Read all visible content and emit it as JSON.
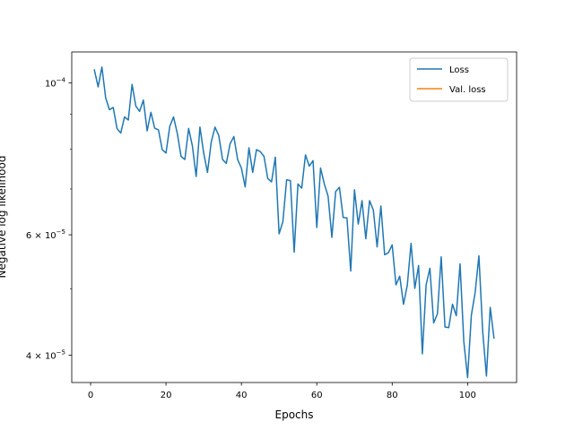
{
  "chart_data": {
    "type": "line",
    "xlabel": "Epochs",
    "ylabel": "Negative log likelihood",
    "x_scale": "linear",
    "y_scale": "log",
    "xlim": [
      -5,
      113
    ],
    "ylim": [
      3.65e-05,
      0.000111
    ],
    "x_ticks": [
      0,
      20,
      40,
      60,
      80,
      100
    ],
    "y_major_ticks": [
      {
        "value": 0.0001,
        "base": "10",
        "exp": "−4",
        "coef": ""
      },
      {
        "value": 6e-05,
        "base": "10",
        "exp": "−5",
        "coef": "6 × "
      },
      {
        "value": 4e-05,
        "base": "10",
        "exp": "−5",
        "coef": "4 × "
      }
    ],
    "y_minor_ticks": [
      5e-05,
      7e-05,
      8e-05,
      9e-05
    ],
    "grid": false,
    "legend_position": "top-right",
    "series": [
      {
        "name": "Loss",
        "color": "#1f77b4",
        "x": [
          1,
          2,
          3,
          4,
          5,
          6,
          7,
          8,
          9,
          10,
          11,
          12,
          13,
          14,
          15,
          16,
          17,
          18,
          19,
          20,
          21,
          22,
          23,
          24,
          25,
          26,
          27,
          28,
          29,
          30,
          31,
          32,
          33,
          34,
          35,
          36,
          37,
          38,
          39,
          40,
          41,
          42,
          43,
          44,
          45,
          46,
          47,
          48,
          49,
          50,
          51,
          52,
          53,
          54,
          55,
          56,
          57,
          58,
          59,
          60,
          61,
          62,
          63,
          64,
          65,
          66,
          67,
          68,
          69,
          70,
          71,
          72,
          73,
          74,
          75,
          76,
          77,
          78,
          79,
          80,
          81,
          82,
          83,
          84,
          85,
          86,
          87,
          88,
          89,
          90,
          91,
          92,
          93,
          94,
          95,
          96,
          97,
          98,
          99,
          100,
          101,
          102,
          103,
          104,
          105,
          106,
          107
        ],
        "y": [
          0.0001045,
          9.87e-05,
          0.0001055,
          9.51e-05,
          9.14e-05,
          9.21e-05,
          8.58e-05,
          8.45e-05,
          8.92e-05,
          8.83e-05,
          9.95e-05,
          9.25e-05,
          9.09e-05,
          9.44e-05,
          8.51e-05,
          9.06e-05,
          8.59e-05,
          8.54e-05,
          7.99e-05,
          7.9e-05,
          8.64e-05,
          8.92e-05,
          8.44e-05,
          7.81e-05,
          7.73e-05,
          8.58e-05,
          8.09e-05,
          7.3e-05,
          8.62e-05,
          7.9e-05,
          7.4e-05,
          8.2e-05,
          8.62e-05,
          8.38e-05,
          7.73e-05,
          7.63e-05,
          8.15e-05,
          8.35e-05,
          7.73e-05,
          7.51e-05,
          7.05e-05,
          8.04e-05,
          7.4e-05,
          7.99e-05,
          7.94e-05,
          7.81e-05,
          7.25e-05,
          7.17e-05,
          7.79e-05,
          6.02e-05,
          6.27e-05,
          7.22e-05,
          7.2e-05,
          5.66e-05,
          7.12e-05,
          7.02e-05,
          7.85e-05,
          7.56e-05,
          7.7e-05,
          6.15e-05,
          7.51e-05,
          7.12e-05,
          6.83e-05,
          5.95e-05,
          6.94e-05,
          7.04e-05,
          6.36e-05,
          6.35e-05,
          5.31e-05,
          6.98e-05,
          6.22e-05,
          6.73e-05,
          5.92e-05,
          6.73e-05,
          6.52e-05,
          5.76e-05,
          6.61e-05,
          5.61e-05,
          5.65e-05,
          5.8e-05,
          5.07e-05,
          5.22e-05,
          4.75e-05,
          5.06e-05,
          5.83e-05,
          5.01e-05,
          5.41e-05,
          4.02e-05,
          5.07e-05,
          5.36e-05,
          4.46e-05,
          4.6e-05,
          5.57e-05,
          4.4e-05,
          4.39e-05,
          4.75e-05,
          4.57e-05,
          5.44e-05,
          4.19e-05,
          3.71e-05,
          4.58e-05,
          4.94e-05,
          5.59e-05,
          4.34e-05,
          3.73e-05,
          4.7e-05,
          4.24e-05
        ]
      },
      {
        "name": "Val. loss",
        "color": "#ff7f0e",
        "x": [],
        "y": []
      }
    ]
  }
}
